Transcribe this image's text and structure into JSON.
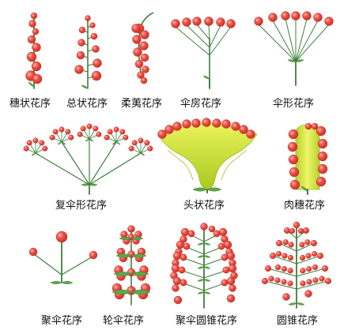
{
  "labels": {
    "spike": "穗状花序",
    "raceme": "总状花序",
    "catkin": "柔荑花序",
    "corymb": "伞房花序",
    "umbel": "伞形花序",
    "compound_umbel": "复伞形花序",
    "head": "头状花序",
    "spadix": "肉穗花序",
    "cyme": "聚伞花序",
    "verticillaster": "轮伞花序",
    "cymose_panicle": "聚伞圆锥花序",
    "panicle": "圆锥花序"
  },
  "colors": {
    "flower": "#e8453c",
    "flower_highlight": "#ffb0a8",
    "stem": "#3f7f3a",
    "leaf": "#5fa64a",
    "receptacle": "#cfe03a",
    "receptacle_dark": "#9bbd1e"
  }
}
